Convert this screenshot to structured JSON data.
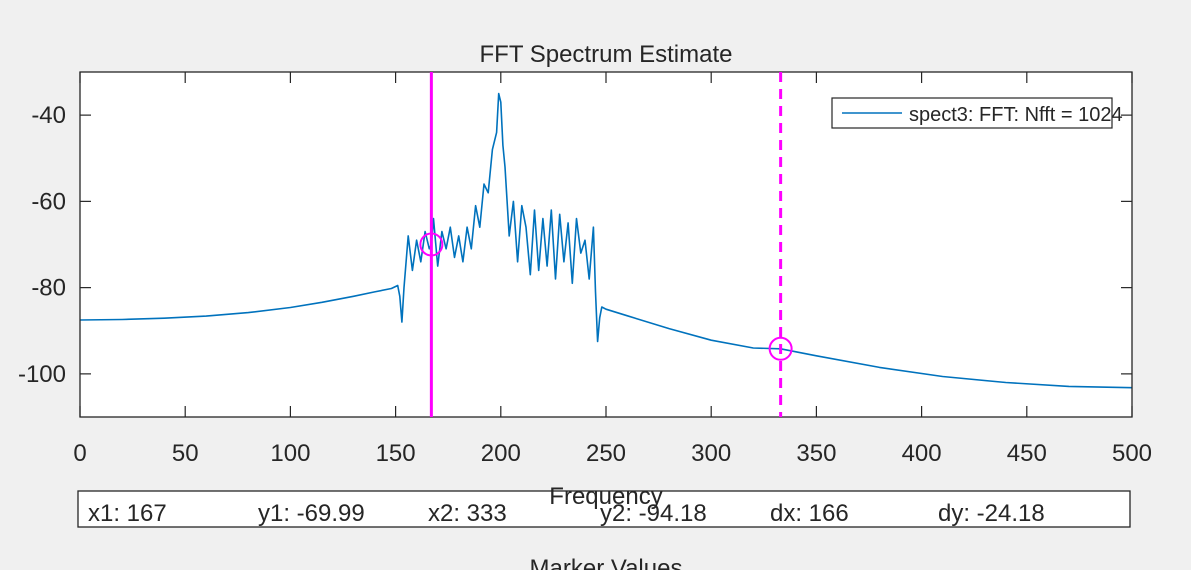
{
  "chart_data": {
    "type": "line",
    "title": "FFT Spectrum Estimate",
    "xlabel": "Frequency",
    "ylabel": "",
    "xlim": [
      0,
      500
    ],
    "ylim": [
      -110,
      -30
    ],
    "x_ticks": [
      0,
      50,
      100,
      150,
      200,
      250,
      300,
      350,
      400,
      450,
      500
    ],
    "y_ticks": [
      -100,
      -80,
      -60,
      -40
    ],
    "grid": false,
    "legend_position": "top-right",
    "series": [
      {
        "name": "spect3: FFT: Nfft = 1024",
        "color": "#0072bd",
        "x": [
          0,
          20,
          40,
          60,
          80,
          100,
          115,
          130,
          140,
          148,
          151,
          152,
          153,
          154,
          156,
          158,
          160,
          162,
          164,
          166,
          167,
          168,
          170,
          172,
          174,
          176,
          178,
          180,
          182,
          184,
          186,
          188,
          190,
          192,
          194,
          196,
          198,
          199,
          200,
          201,
          202,
          204,
          206,
          208,
          210,
          212,
          214,
          216,
          218,
          220,
          222,
          224,
          226,
          228,
          230,
          232,
          234,
          236,
          238,
          240,
          242,
          244,
          245,
          246,
          247,
          248,
          250,
          260,
          280,
          300,
          320,
          333,
          350,
          380,
          410,
          440,
          470,
          500
        ],
        "y": [
          -87.5,
          -87.4,
          -87.1,
          -86.6,
          -85.8,
          -84.6,
          -83.4,
          -82.0,
          -81.0,
          -80.2,
          -79.5,
          -82.0,
          -88.0,
          -80.0,
          -68.0,
          -76.0,
          -69.0,
          -74.0,
          -67.0,
          -71.0,
          -69.99,
          -64.0,
          -75.0,
          -67.0,
          -71.0,
          -66.0,
          -73.0,
          -68.0,
          -74.0,
          -66.0,
          -71.0,
          -61.0,
          -66.0,
          -56.0,
          -58.0,
          -48.0,
          -44.0,
          -35.0,
          -37.0,
          -47.0,
          -52.0,
          -68.0,
          -60.0,
          -74.0,
          -61.0,
          -66.0,
          -77.0,
          -62.0,
          -76.0,
          -64.0,
          -75.0,
          -62.0,
          -78.0,
          -63.0,
          -74.0,
          -65.0,
          -79.0,
          -64.0,
          -72.0,
          -69.0,
          -78.0,
          -66.0,
          -81.0,
          -92.5,
          -87.0,
          -84.5,
          -85.0,
          -86.5,
          -89.5,
          -92.2,
          -94.0,
          -94.18,
          -95.8,
          -98.5,
          -100.6,
          -102.0,
          -102.9,
          -103.2
        ]
      }
    ],
    "markers": [
      {
        "name": "x1",
        "x": 167,
        "y": -69.99,
        "style": "solid",
        "color": "#ff00ff"
      },
      {
        "name": "x2",
        "x": 333,
        "y": -94.18,
        "style": "dashed",
        "color": "#ff00ff"
      }
    ]
  },
  "marker_panel": {
    "x1": "x1: 167",
    "y1": "y1: -69.99",
    "x2": "x2: 333",
    "y2": "y2: -94.18",
    "dx": "dx: 166",
    "dy": "dy: -24.18",
    "title": "Marker Values"
  }
}
